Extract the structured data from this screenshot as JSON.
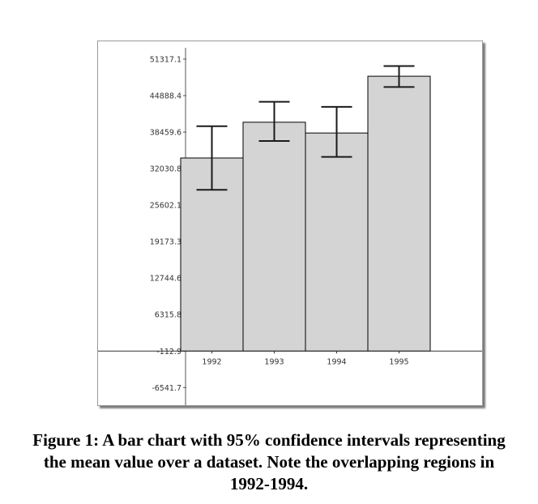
{
  "chart_data": {
    "type": "bar",
    "title": "",
    "xlabel": "",
    "ylabel": "",
    "categories": [
      "1992",
      "1993",
      "1994",
      "1995"
    ],
    "values": [
      33900,
      40200,
      38300,
      48300
    ],
    "error_bars": [
      {
        "low": 28300,
        "high": 39500
      },
      {
        "low": 36900,
        "high": 43800
      },
      {
        "low": 34100,
        "high": 42900
      },
      {
        "low": 46400,
        "high": 50100
      }
    ],
    "y_ticks": [
      51317.1,
      44888.4,
      38459.6,
      32030.8,
      25602.1,
      19173.3,
      12744.6,
      6315.8,
      -112.9,
      -6541.7
    ],
    "y_tick_labels": [
      "51317.1",
      "44888.4",
      "38459.6",
      "32030.8",
      "25602.1",
      "19173.3",
      "12744.6",
      "6315.8",
      "-112.9",
      "-6541.7"
    ],
    "ylim": [
      -9000,
      54000
    ],
    "grid": false,
    "colors": {
      "bar_fill": "#d4d4d4",
      "bar_stroke": "#000000",
      "error_bar": "#1a1a1a"
    }
  },
  "caption": "Figure 1: A bar chart with 95% confidence intervals representing the mean value over a dataset. Note the overlapping regions in 1992-1994."
}
